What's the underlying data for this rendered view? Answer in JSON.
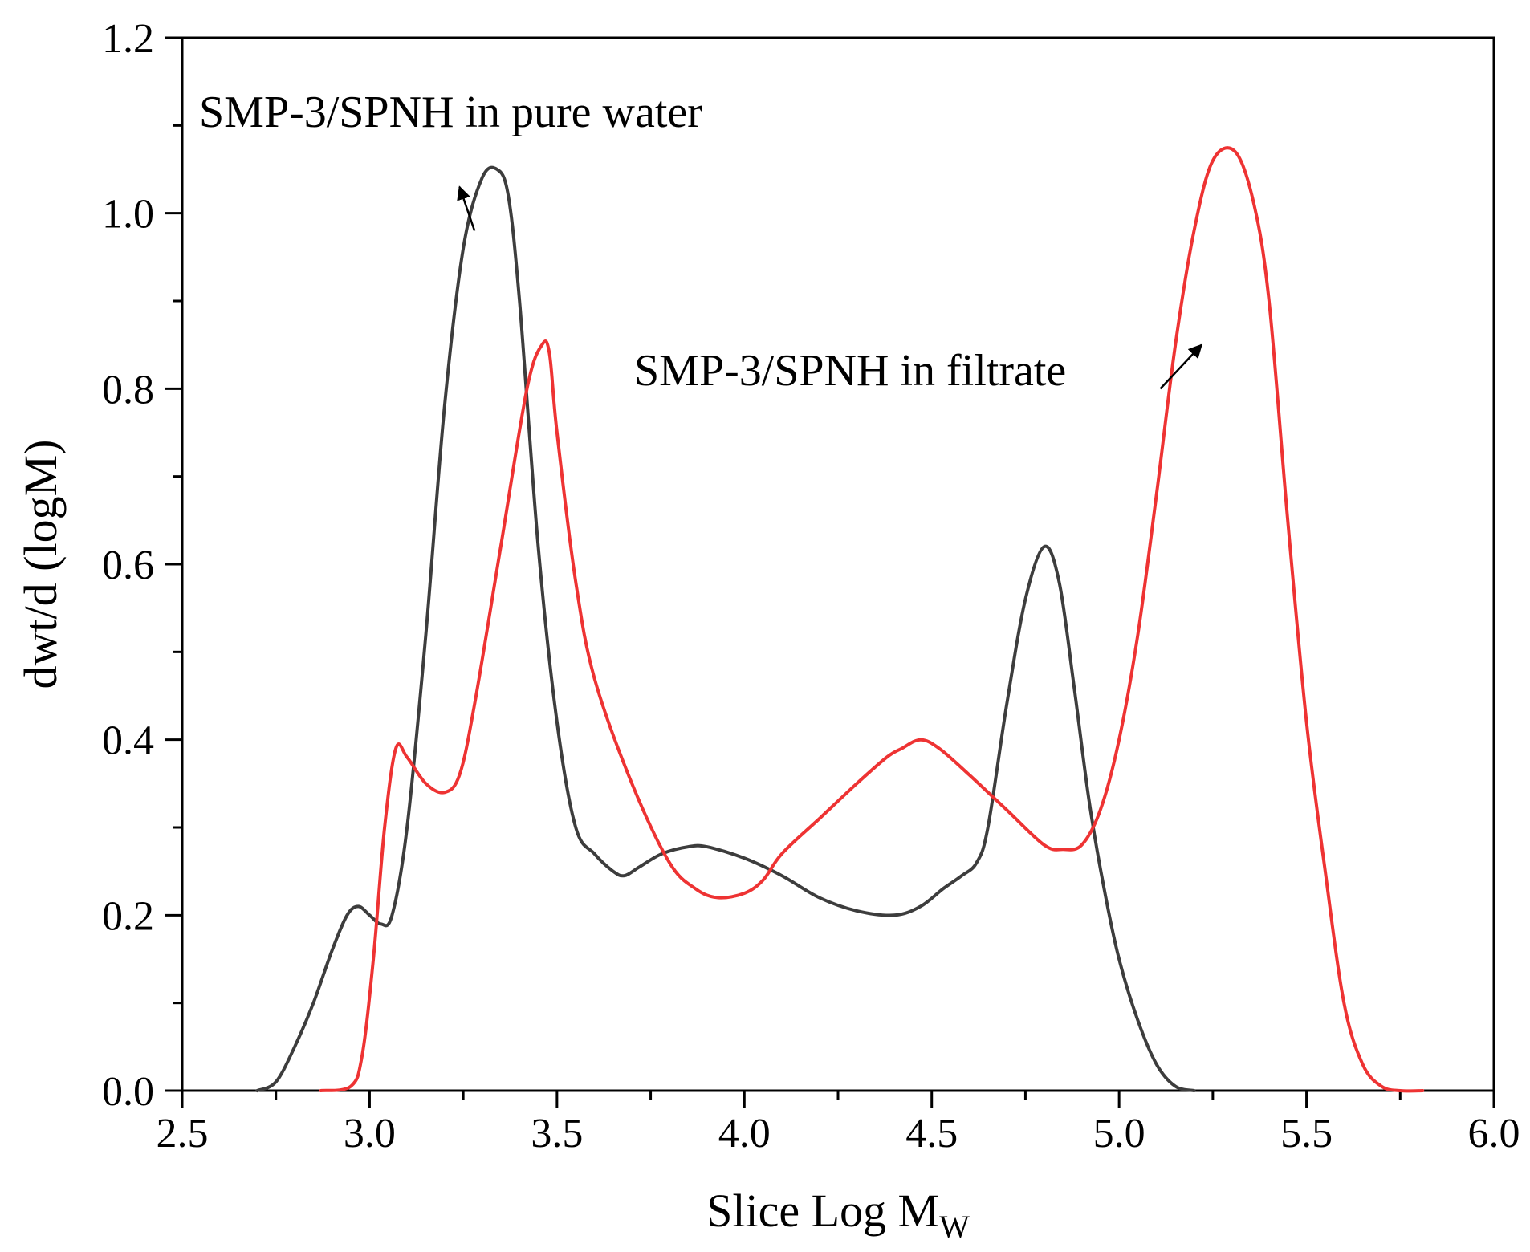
{
  "chart_data": {
    "type": "line",
    "title": "",
    "xlabel": "Slice Log M",
    "xlabel_sub": "W",
    "ylabel": "dwt/d (logM)",
    "xlim": [
      2.5,
      6.0
    ],
    "ylim": [
      0.0,
      1.2
    ],
    "grid": false,
    "xticks": [
      2.5,
      3.0,
      3.5,
      4.0,
      4.5,
      5.0,
      5.5,
      6.0
    ],
    "xtick_labels": [
      "2.5",
      "3.0",
      "3.5",
      "4.0",
      "4.5",
      "5.0",
      "5.5",
      "6.0"
    ],
    "yticks": [
      0.0,
      0.2,
      0.4,
      0.6,
      0.8,
      1.0,
      1.2
    ],
    "ytick_labels": [
      "0.0",
      "0.2",
      "0.4",
      "0.6",
      "0.8",
      "1.0",
      "1.2"
    ],
    "colors": {
      "pure_water": "#3d3d3d",
      "filtrate": "#ee3333",
      "axis": "#000000"
    },
    "series": [
      {
        "name": "SMP-3/SPNH in pure water",
        "color": "#3d3d3d",
        "x": [
          2.7,
          2.75,
          2.8,
          2.85,
          2.9,
          2.94,
          2.97,
          3.0,
          3.03,
          3.06,
          3.1,
          3.15,
          3.2,
          3.25,
          3.3,
          3.34,
          3.37,
          3.4,
          3.45,
          3.5,
          3.55,
          3.6,
          3.65,
          3.68,
          3.72,
          3.78,
          3.85,
          3.9,
          4.0,
          4.1,
          4.2,
          4.3,
          4.4,
          4.47,
          4.53,
          4.58,
          4.62,
          4.65,
          4.7,
          4.75,
          4.8,
          4.84,
          4.88,
          4.92,
          4.96,
          5.0,
          5.05,
          5.1,
          5.15,
          5.2
        ],
        "y": [
          0.0,
          0.01,
          0.05,
          0.1,
          0.16,
          0.2,
          0.21,
          0.2,
          0.19,
          0.2,
          0.3,
          0.52,
          0.78,
          0.96,
          1.04,
          1.05,
          1.02,
          0.9,
          0.62,
          0.42,
          0.3,
          0.27,
          0.25,
          0.245,
          0.255,
          0.27,
          0.278,
          0.278,
          0.265,
          0.245,
          0.22,
          0.205,
          0.2,
          0.21,
          0.23,
          0.245,
          0.26,
          0.3,
          0.44,
          0.56,
          0.62,
          0.58,
          0.46,
          0.33,
          0.23,
          0.15,
          0.08,
          0.03,
          0.005,
          0.0
        ]
      },
      {
        "name": "SMP-3/SPNH in filtrate",
        "color": "#ee3333",
        "x": [
          2.87,
          2.95,
          2.98,
          3.01,
          3.04,
          3.07,
          3.1,
          3.15,
          3.2,
          3.24,
          3.28,
          3.35,
          3.42,
          3.46,
          3.48,
          3.5,
          3.55,
          3.6,
          3.7,
          3.8,
          3.87,
          3.93,
          4.0,
          4.05,
          4.1,
          4.2,
          4.3,
          4.38,
          4.42,
          4.47,
          4.52,
          4.6,
          4.7,
          4.8,
          4.85,
          4.9,
          4.95,
          5.0,
          5.05,
          5.1,
          5.15,
          5.2,
          5.25,
          5.31,
          5.36,
          5.4,
          5.45,
          5.5,
          5.55,
          5.6,
          5.65,
          5.7,
          5.75,
          5.81
        ],
        "y": [
          0.0,
          0.005,
          0.04,
          0.15,
          0.3,
          0.39,
          0.38,
          0.35,
          0.34,
          0.36,
          0.44,
          0.62,
          0.8,
          0.85,
          0.84,
          0.75,
          0.58,
          0.47,
          0.35,
          0.26,
          0.23,
          0.22,
          0.225,
          0.24,
          0.27,
          0.31,
          0.35,
          0.38,
          0.39,
          0.4,
          0.39,
          0.36,
          0.32,
          0.28,
          0.275,
          0.28,
          0.32,
          0.4,
          0.52,
          0.68,
          0.85,
          0.98,
          1.06,
          1.07,
          1.01,
          0.9,
          0.65,
          0.42,
          0.25,
          0.1,
          0.03,
          0.005,
          0.0,
          0.0
        ]
      }
    ],
    "annotations": [
      {
        "text": "SMP-3/SPNH in pure water",
        "arrow_from": [
          3.28,
          0.98
        ],
        "arrow_to": [
          3.24,
          1.03
        ],
        "target_series": "SMP-3/SPNH in pure water"
      },
      {
        "text": "SMP-3/SPNH in filtrate",
        "arrow_from": [
          5.11,
          0.8
        ],
        "arrow_to": [
          5.22,
          0.85
        ],
        "target_series": "SMP-3/SPNH in filtrate"
      }
    ]
  }
}
